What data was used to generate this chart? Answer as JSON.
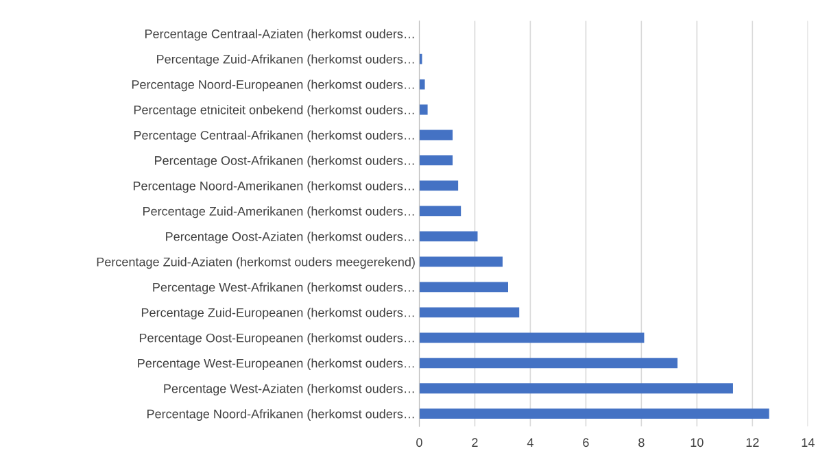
{
  "chart_data": {
    "type": "bar",
    "orientation": "horizontal",
    "color": "#4472c4",
    "categories": [
      "Percentage Centraal-Aziaten (herkomst ouders…",
      "Percentage Zuid-Afrikanen (herkomst ouders…",
      "Percentage Noord-Europeanen (herkomst ouders…",
      "Percentage etniciteit onbekend (herkomst ouders…",
      "Percentage Centraal-Afrikanen (herkomst ouders…",
      "Percentage Oost-Afrikanen (herkomst ouders…",
      "Percentage Noord-Amerikanen (herkomst ouders…",
      "Percentage Zuid-Amerikanen (herkomst ouders…",
      "Percentage Oost-Aziaten (herkomst ouders…",
      "Percentage Zuid-Aziaten (herkomst ouders meegerekend)",
      "Percentage West-Afrikanen (herkomst ouders…",
      "Percentage Zuid-Europeanen (herkomst ouders…",
      "Percentage Oost-Europeanen (herkomst ouders…",
      "Percentage West-Europeanen (herkomst ouders…",
      "Percentage West-Aziaten (herkomst ouders…",
      "Percentage Noord-Afrikanen (herkomst ouders…"
    ],
    "values": [
      0,
      0.1,
      0.2,
      0.3,
      1.2,
      1.2,
      1.4,
      1.5,
      2.1,
      3.0,
      3.2,
      3.6,
      8.1,
      9.3,
      11.3,
      12.6
    ],
    "xlim": [
      0,
      14
    ],
    "xticks": [
      0,
      2,
      4,
      6,
      8,
      10,
      12,
      14
    ],
    "grid": "x"
  }
}
